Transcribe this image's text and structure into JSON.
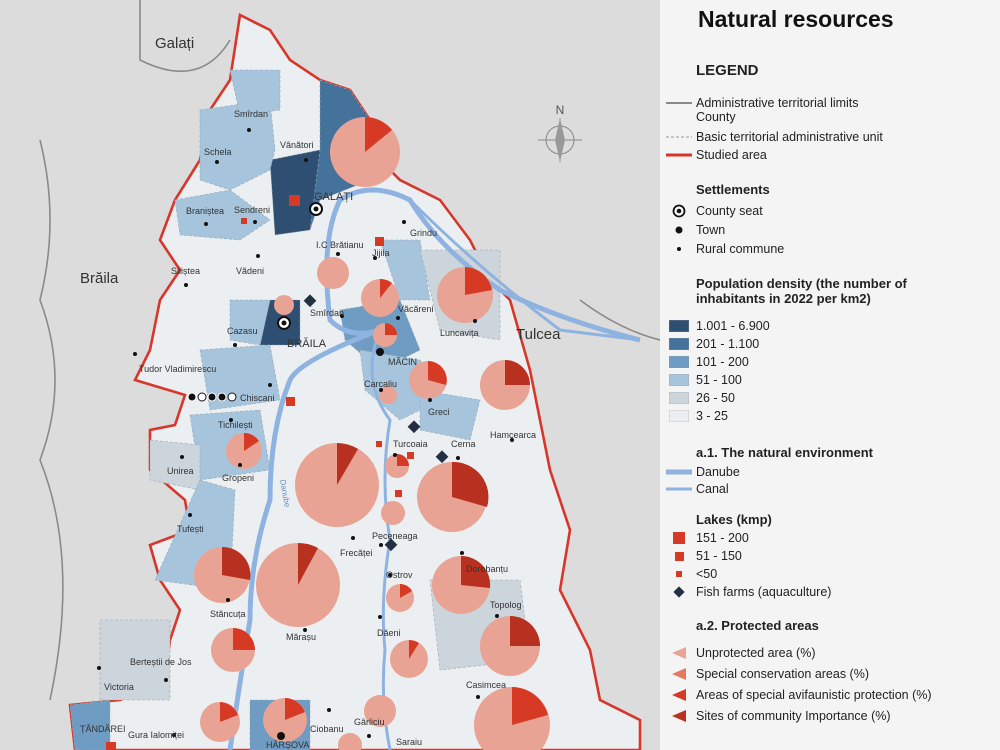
{
  "title": "Natural resources",
  "legend": {
    "heading": "LEGEND",
    "boundaries": [
      {
        "label": "Administrative territorial limits",
        "label2": "County",
        "style": "solid-gray"
      },
      {
        "label": "Basic territorial administrative unit",
        "style": "dashed-gray"
      },
      {
        "label": "Studied area",
        "style": "solid-red"
      }
    ],
    "settlements_heading": "Settlements",
    "settlements": [
      {
        "label": "County seat",
        "icon": "county-seat-icon"
      },
      {
        "label": "Town",
        "icon": "town-dot-icon"
      },
      {
        "label": "Rural commune",
        "icon": "commune-dot-icon"
      }
    ],
    "density_heading": "Population density (the number of inhabitants in 2022 per km2)",
    "density_classes": [
      {
        "label": "1.001 - 6.900",
        "color": "#2f4f72"
      },
      {
        "label": "201 - 1.100",
        "color": "#44729a"
      },
      {
        "label": "101 - 200",
        "color": "#6f9cc2"
      },
      {
        "label": "51 - 100",
        "color": "#a6c4dc"
      },
      {
        "label": "26 - 50",
        "color": "#cdd5dc"
      },
      {
        "label": "3 - 25",
        "color": "#eceff1"
      }
    ],
    "natural_heading": "a.1. The natural environment",
    "water": [
      {
        "label": "Danube",
        "color": "#8fb3e0"
      },
      {
        "label": "Canal",
        "color": "#8fb3e0"
      }
    ],
    "lakes_heading": "Lakes (kmp)",
    "lakes": [
      {
        "label": "151 - 200",
        "size": "large"
      },
      {
        "label": "51 - 150",
        "size": "medium"
      },
      {
        "label": "<50",
        "size": "small"
      },
      {
        "label": "Fish farms (aquaculture)",
        "icon": "fish-farm-diamond-icon"
      }
    ],
    "protected_heading": "a.2. Protected areas",
    "protected": [
      {
        "label": "Unprotected area (%)",
        "color": "#e8a394"
      },
      {
        "label": "Special conservation areas (%)",
        "color": "#e57a5e"
      },
      {
        "label": "Areas of special avifaunistic protection (%)",
        "color": "#d63a24"
      },
      {
        "label": "Sites of community Importance (%)",
        "color": "#b8301f"
      }
    ]
  },
  "map": {
    "north_label": "N",
    "county_labels": [
      "Galați",
      "Brăila",
      "Tulcea"
    ],
    "place_labels": [
      "Smîrdan",
      "Vânători",
      "Schela",
      "Braniștea",
      "Sendreni",
      "GALAȚI",
      "Grindu",
      "I.C Brătianu",
      "Jijila",
      "Siliștea",
      "Vădeni",
      "Văcăreni",
      "Luncavița",
      "Smîrdan",
      "Cazasu",
      "BRĂILA",
      "MĂCIN",
      "Tudor Vladimirescu",
      "Carcaliu",
      "Chiscani",
      "Greci",
      "Hamcearca",
      "Tichilești",
      "Turcoaia",
      "Cerna",
      "Unirea",
      "Gropeni",
      "Danube",
      "Tufești",
      "Frecăței",
      "Peceneaga",
      "Dorobanțu",
      "Ostrov",
      "Stăncuța",
      "Topolog",
      "Mărașu",
      "Dăeni",
      "Berteștii de Jos",
      "Victoria",
      "Casimcea",
      "Gârliciu",
      "ȚĂNDĂREI",
      "Gura Ialomiței",
      "Ciobanu",
      "Saraiu",
      "HÂRȘOVA"
    ]
  }
}
